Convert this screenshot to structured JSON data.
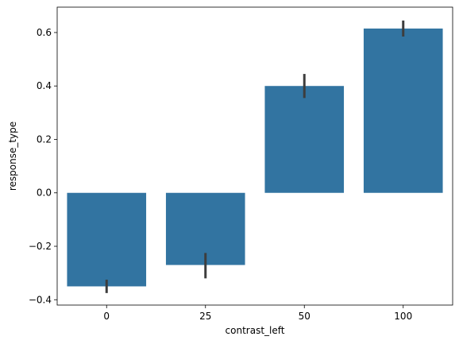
{
  "chart_data": {
    "type": "bar",
    "title": "",
    "xlabel": "contrast_left",
    "ylabel": "response_type",
    "categories": [
      "0",
      "25",
      "50",
      "100"
    ],
    "values": [
      -0.35,
      -0.27,
      0.4,
      0.615
    ],
    "error_low": [
      -0.375,
      -0.32,
      0.355,
      0.585
    ],
    "error_high": [
      -0.325,
      -0.225,
      0.445,
      0.645
    ],
    "ylim": [
      -0.42,
      0.695
    ],
    "yticks": [
      -0.4,
      -0.2,
      0.0,
      0.2,
      0.4,
      0.6
    ],
    "ytick_labels": [
      "−0.4",
      "−0.2",
      "0.0",
      "0.2",
      "0.4",
      "0.6"
    ],
    "grid": false,
    "colors": {
      "bar": "#3274a1",
      "error": "#3d3d3d",
      "axis": "#000000",
      "background": "#ffffff"
    }
  }
}
